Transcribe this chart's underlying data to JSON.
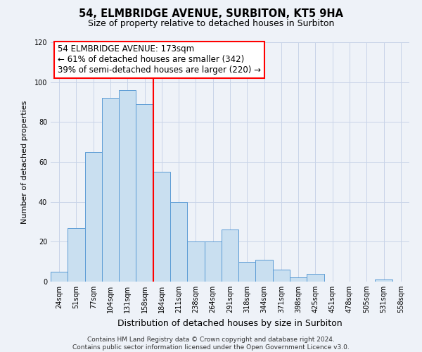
{
  "title_line1": "54, ELMBRIDGE AVENUE, SURBITON, KT5 9HA",
  "title_line2": "Size of property relative to detached houses in Surbiton",
  "xlabel": "Distribution of detached houses by size in Surbiton",
  "ylabel": "Number of detached properties",
  "categories": [
    "24sqm",
    "51sqm",
    "77sqm",
    "104sqm",
    "131sqm",
    "158sqm",
    "184sqm",
    "211sqm",
    "238sqm",
    "264sqm",
    "291sqm",
    "318sqm",
    "344sqm",
    "371sqm",
    "398sqm",
    "425sqm",
    "451sqm",
    "478sqm",
    "505sqm",
    "531sqm",
    "558sqm"
  ],
  "values": [
    5,
    27,
    65,
    92,
    96,
    89,
    55,
    40,
    20,
    20,
    26,
    10,
    11,
    6,
    2,
    4,
    0,
    0,
    0,
    1,
    0
  ],
  "bar_color": "#c9dff0",
  "bar_edge_color": "#5b9bd5",
  "vline_color": "red",
  "vline_pos": 5.5,
  "ylim": [
    0,
    120
  ],
  "yticks": [
    0,
    20,
    40,
    60,
    80,
    100,
    120
  ],
  "annotation_title": "54 ELMBRIDGE AVENUE: 173sqm",
  "annotation_line1": "← 61% of detached houses are smaller (342)",
  "annotation_line2": "39% of semi-detached houses are larger (220) →",
  "annotation_box_color": "white",
  "annotation_box_edge_color": "red",
  "footer_line1": "Contains HM Land Registry data © Crown copyright and database right 2024.",
  "footer_line2": "Contains public sector information licensed under the Open Government Licence v3.0.",
  "background_color": "#eef2f8",
  "plot_bg_color": "#eef2f8",
  "grid_color": "#c8d4e8",
  "title_fontsize": 10.5,
  "subtitle_fontsize": 9,
  "xlabel_fontsize": 9,
  "ylabel_fontsize": 8,
  "tick_fontsize": 7,
  "footer_fontsize": 6.5,
  "annotation_fontsize": 8.5
}
